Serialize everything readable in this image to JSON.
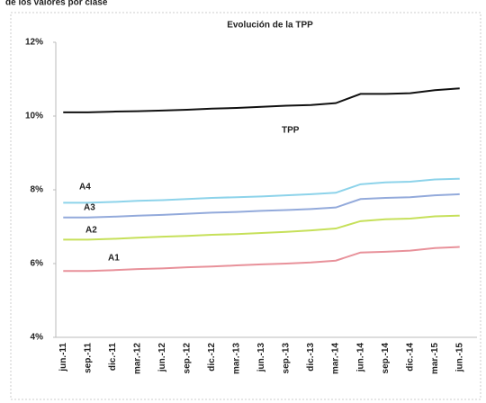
{
  "caption": "de los valores por clase",
  "chart_data": {
    "type": "line",
    "title": "Evolución  de la TPP",
    "categories": [
      "jun.-11",
      "sep.-11",
      "dic.-11",
      "mar.-12",
      "jun.-12",
      "sep.-12",
      "dic.-12",
      "mar.-13",
      "jun.-13",
      "sep.-13",
      "dic.-13",
      "mar.-14",
      "jun.-14",
      "sep.-14",
      "dic.-14",
      "mar.-15",
      "jun.-15"
    ],
    "series": [
      {
        "name": "TPP",
        "color": "#111111",
        "values": [
          10.1,
          10.1,
          10.12,
          10.13,
          10.15,
          10.17,
          10.2,
          10.22,
          10.25,
          10.28,
          10.3,
          10.35,
          10.6,
          10.6,
          10.62,
          10.7,
          10.75
        ]
      },
      {
        "name": "A4",
        "color": "#8dd3ea",
        "values": [
          7.65,
          7.65,
          7.67,
          7.7,
          7.72,
          7.75,
          7.78,
          7.8,
          7.82,
          7.85,
          7.88,
          7.92,
          8.15,
          8.2,
          8.22,
          8.28,
          8.3
        ]
      },
      {
        "name": "A3",
        "color": "#93aadb",
        "values": [
          7.25,
          7.25,
          7.27,
          7.3,
          7.32,
          7.35,
          7.38,
          7.4,
          7.43,
          7.45,
          7.48,
          7.52,
          7.75,
          7.78,
          7.8,
          7.85,
          7.88
        ]
      },
      {
        "name": "A2",
        "color": "#c6e05a",
        "values": [
          6.65,
          6.65,
          6.67,
          6.7,
          6.73,
          6.75,
          6.78,
          6.8,
          6.83,
          6.86,
          6.9,
          6.95,
          7.15,
          7.2,
          7.22,
          7.28,
          7.3
        ]
      },
      {
        "name": "A1",
        "color": "#e8919a",
        "values": [
          5.8,
          5.8,
          5.82,
          5.85,
          5.87,
          5.9,
          5.92,
          5.95,
          5.98,
          6.0,
          6.03,
          6.08,
          6.3,
          6.32,
          6.35,
          6.42,
          6.45
        ]
      }
    ],
    "ylim": [
      4,
      12
    ],
    "yticks": [
      {
        "value": 4,
        "label": "4%"
      },
      {
        "value": 6,
        "label": "6%"
      },
      {
        "value": 8,
        "label": "8%"
      },
      {
        "value": 10,
        "label": "10%"
      },
      {
        "value": 12,
        "label": "12%"
      }
    ],
    "grid": false
  }
}
